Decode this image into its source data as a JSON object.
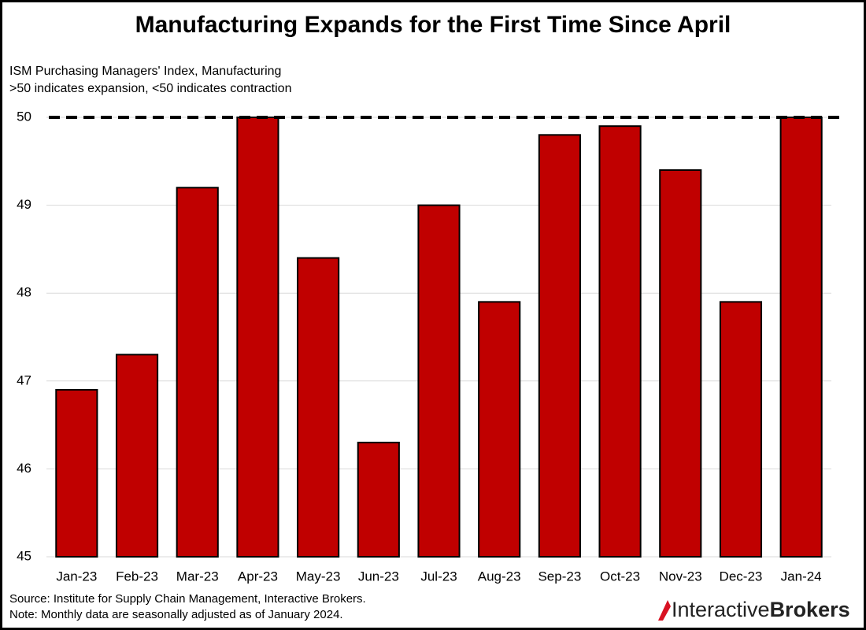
{
  "chart_data": {
    "type": "bar",
    "title": "Manufacturing Expands for the First Time Since April",
    "subtitle": [
      "ISM Purchasing Managers' Index, Manufacturing",
      ">50 indicates expansion, <50 indicates contraction"
    ],
    "categories": [
      "Jan-23",
      "Feb-23",
      "Mar-23",
      "Apr-23",
      "May-23",
      "Jun-23",
      "Jul-23",
      "Aug-23",
      "Sep-23",
      "Oct-23",
      "Nov-23",
      "Dec-23",
      "Jan-24"
    ],
    "values": [
      46.9,
      47.3,
      49.2,
      50.0,
      48.4,
      46.3,
      49.0,
      47.9,
      49.8,
      49.9,
      49.4,
      47.9,
      50.0
    ],
    "color": "#c00000",
    "ylim": [
      45,
      50
    ],
    "yticks": [
      45,
      46,
      47,
      48,
      49,
      50
    ],
    "grid": true,
    "reference_line": 50,
    "notes": [
      "Source: Institute for Supply Chain Management, Interactive Brokers.",
      "Note: Monthly data are seasonally adjusted as of January 2024."
    ],
    "logo": [
      "Interactive",
      "Brokers"
    ]
  }
}
